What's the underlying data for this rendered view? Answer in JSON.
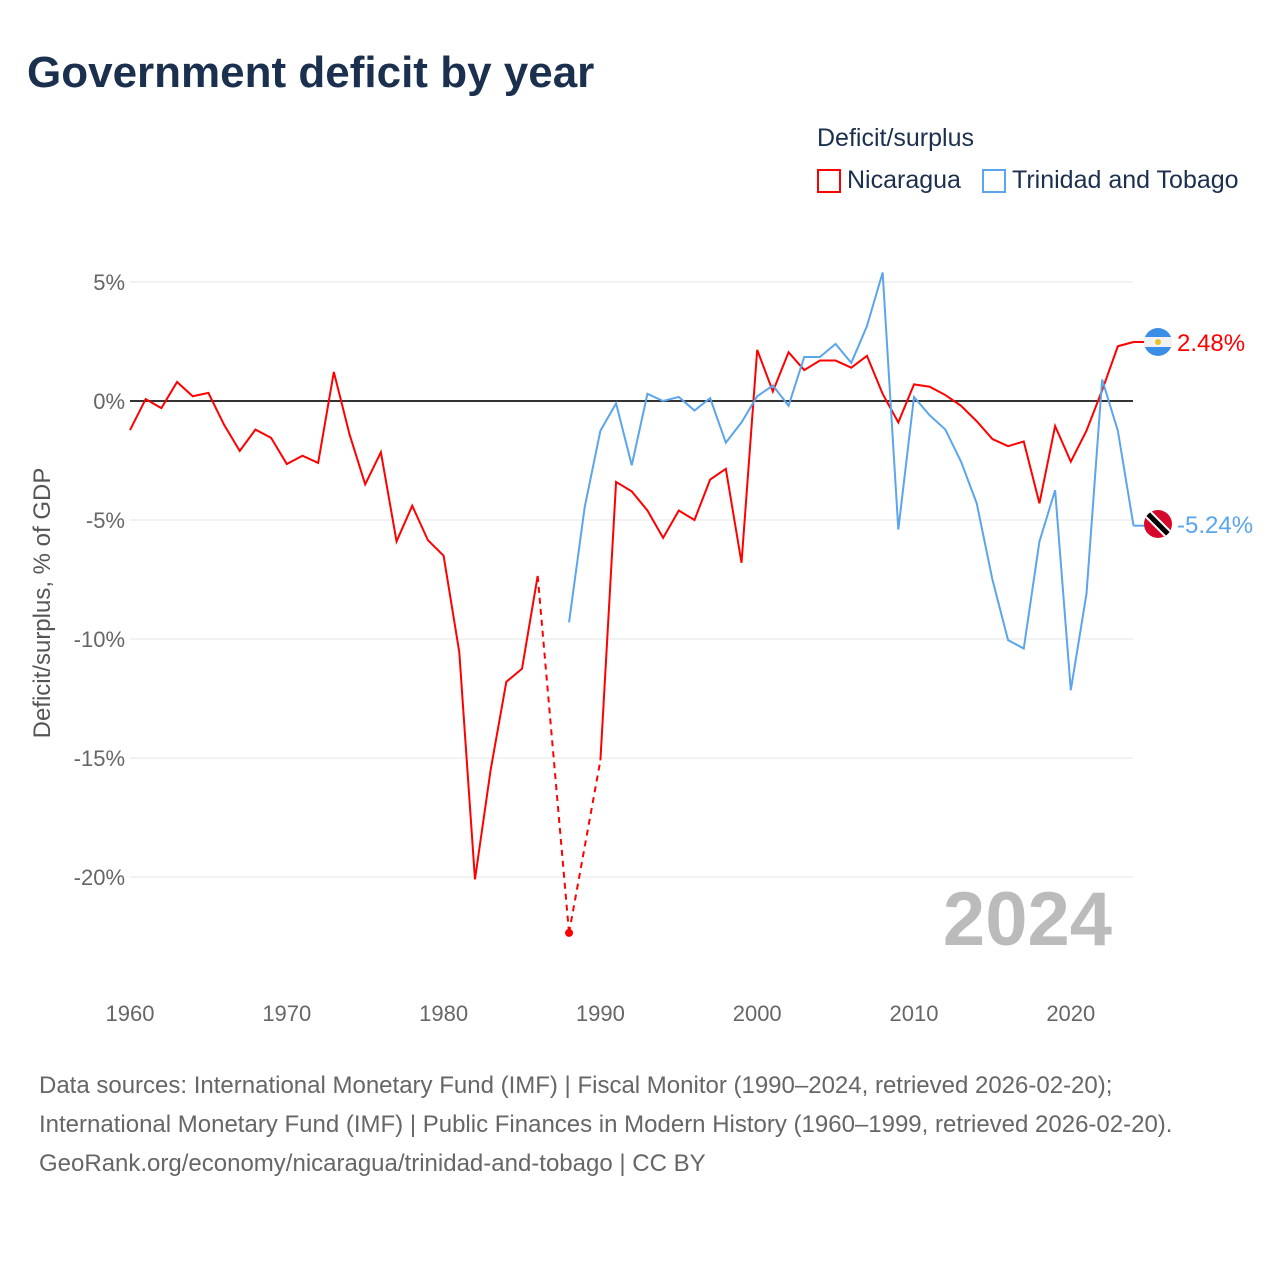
{
  "title": "Government deficit by year",
  "legend": {
    "title": "Deficit/surplus",
    "items": [
      {
        "label": "Nicaragua",
        "color": "#ff0000"
      },
      {
        "label": "Trinidad and Tobago",
        "color": "#5aa5ec"
      }
    ]
  },
  "year_label": "2024",
  "footer": {
    "sources": "Data sources: International Monetary Fund (IMF) | Fiscal Monitor (1990–2024, retrieved 2026-02-20); International Monetary Fund (IMF) | Public Finances in Modern History (1960–1999, retrieved 2026-02-20).",
    "link": "GeoRank.org/economy/nicaragua/trinidad-and-tobago | CC BY"
  },
  "chart_data": {
    "type": "line",
    "title": "Government deficit by year",
    "ylabel": "Deficit/surplus, % of GDP",
    "xlabel": "",
    "ylim": [
      -23,
      5.5
    ],
    "xlim": [
      1960,
      2024
    ],
    "yticks": [
      {
        "v": 5,
        "label": "5%"
      },
      {
        "v": 0,
        "label": "0%"
      },
      {
        "v": -5,
        "label": "-5%"
      },
      {
        "v": -10,
        "label": "-10%"
      },
      {
        "v": -15,
        "label": "-15%"
      },
      {
        "v": -20,
        "label": "-20%"
      }
    ],
    "xticks": [
      {
        "v": 1960,
        "label": "1960"
      },
      {
        "v": 1970,
        "label": "1970"
      },
      {
        "v": 1980,
        "label": "1980"
      },
      {
        "v": 1990,
        "label": "1990"
      },
      {
        "v": 2000,
        "label": "2000"
      },
      {
        "v": 2010,
        "label": "2010"
      },
      {
        "v": 2020,
        "label": "2020"
      }
    ],
    "start_year": 1960,
    "series": [
      {
        "name": "Nicaragua",
        "color": "#ff0000",
        "end_label": "2.48%",
        "values": [
          -1.22,
          0.08,
          -0.3,
          0.8,
          0.2,
          0.34,
          -1.0,
          -2.1,
          -1.2,
          -1.55,
          -2.65,
          -2.3,
          -2.6,
          1.22,
          -1.4,
          -3.5,
          -2.15,
          -5.9,
          -4.4,
          -5.85,
          -6.5,
          -10.55,
          -20.1,
          -15.5,
          -11.8,
          -11.25,
          -7.35,
          null,
          -22.35,
          null,
          -15.1,
          -3.4,
          -3.8,
          -4.6,
          -5.75,
          -4.6,
          -5.0,
          -3.3,
          -2.85,
          -6.8,
          2.15,
          0.4,
          2.05,
          1.3,
          1.7,
          1.7,
          1.4,
          1.9,
          0.3,
          -0.9,
          0.7,
          0.6,
          0.25,
          -0.2,
          -0.85,
          -1.6,
          -1.9,
          -1.7,
          -4.3,
          -1.05,
          -2.55,
          -1.25,
          0.45,
          2.3,
          2.48
        ]
      },
      {
        "name": "Trinidad and Tobago",
        "color": "#5aa5ec",
        "end_label": "-5.24%",
        "values": [
          null,
          null,
          null,
          null,
          null,
          null,
          null,
          null,
          null,
          null,
          null,
          null,
          null,
          null,
          null,
          null,
          null,
          null,
          null,
          null,
          null,
          null,
          null,
          null,
          null,
          null,
          null,
          null,
          -9.3,
          -4.45,
          -1.25,
          -0.1,
          -2.7,
          0.3,
          0.0,
          0.17,
          -0.4,
          0.12,
          -1.75,
          -0.9,
          0.2,
          0.65,
          -0.2,
          1.85,
          1.85,
          2.4,
          1.6,
          3.15,
          5.4,
          -5.4,
          0.17,
          -0.6,
          -1.2,
          -2.55,
          -4.3,
          -7.5,
          -10.05,
          -10.4,
          -5.9,
          -3.75,
          -12.15,
          -8.1,
          0.9,
          -1.25,
          -5.24
        ]
      }
    ]
  }
}
